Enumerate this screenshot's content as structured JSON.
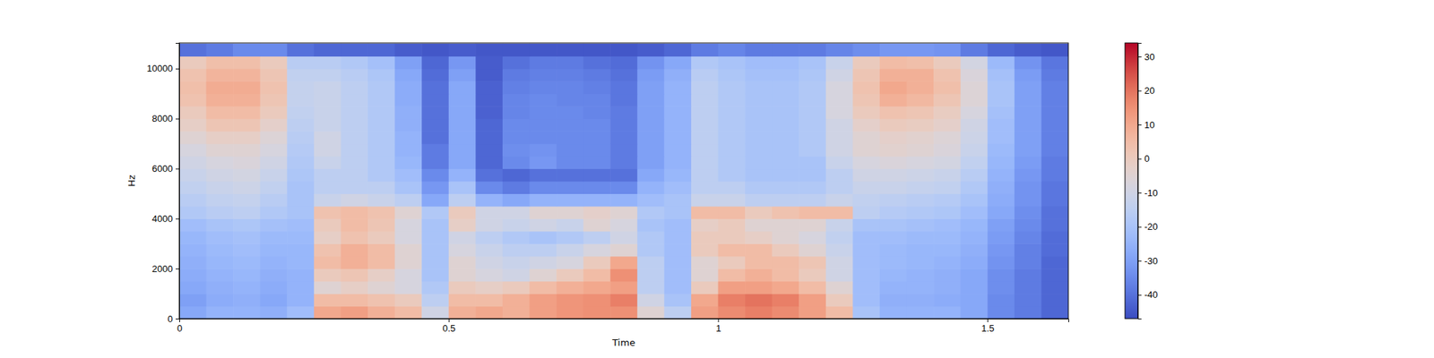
{
  "chart_data": {
    "type": "heatmap",
    "x_label": "Time",
    "y_label": "Hz",
    "xlim": [
      0,
      1.65
    ],
    "xticks": [
      0,
      0.5,
      1,
      1.5
    ],
    "ylim": [
      0,
      11025
    ],
    "yticks": [
      0,
      2000,
      4000,
      6000,
      8000,
      10000
    ],
    "colorbar_range": [
      -47,
      34
    ],
    "colorbar_ticks": [
      -40,
      -30,
      -20,
      -10,
      0,
      10,
      20,
      30
    ],
    "x": [
      0.025,
      0.075,
      0.125,
      0.175,
      0.225,
      0.275,
      0.325,
      0.375,
      0.425,
      0.475,
      0.525,
      0.575,
      0.625,
      0.675,
      0.725,
      0.775,
      0.825,
      0.875,
      0.925,
      0.975,
      1.025,
      1.075,
      1.125,
      1.175,
      1.225,
      1.275,
      1.325,
      1.375,
      1.425,
      1.475,
      1.525,
      1.575,
      1.625
    ],
    "y": [
      250,
      750,
      1250,
      1750,
      2250,
      2750,
      3250,
      3750,
      4250,
      4750,
      5250,
      5750,
      6250,
      6750,
      7250,
      7750,
      8250,
      8750,
      9250,
      9750,
      10250,
      10750
    ],
    "z": [
      [
        -28,
        -25,
        -25,
        -26,
        -22,
        10,
        12,
        8,
        5,
        -10,
        8,
        10,
        8,
        12,
        14,
        15,
        15,
        -5,
        -15,
        12,
        16,
        18,
        16,
        12,
        5,
        -20,
        -25,
        -25,
        -25,
        -28,
        -35,
        -38,
        -42
      ],
      [
        -30,
        -27,
        -26,
        -28,
        -25,
        5,
        5,
        3,
        0,
        -15,
        5,
        5,
        8,
        12,
        14,
        15,
        18,
        -10,
        -20,
        10,
        18,
        20,
        18,
        12,
        0,
        -22,
        -26,
        -26,
        -27,
        -28,
        -35,
        -38,
        -42
      ],
      [
        -28,
        -26,
        -25,
        -27,
        -25,
        -5,
        -2,
        -5,
        -8,
        -18,
        0,
        -2,
        0,
        5,
        8,
        10,
        12,
        -15,
        -22,
        0,
        12,
        12,
        10,
        5,
        -5,
        -22,
        -25,
        -25,
        -26,
        -28,
        -34,
        -38,
        -42
      ],
      [
        -27,
        -25,
        -24,
        -26,
        -25,
        0,
        2,
        -2,
        -8,
        -20,
        -5,
        -8,
        -10,
        -5,
        0,
        5,
        15,
        -15,
        -22,
        -5,
        5,
        8,
        5,
        0,
        -10,
        -22,
        -24,
        -25,
        -26,
        -28,
        -34,
        -38,
        -42
      ],
      [
        -26,
        -24,
        -23,
        -25,
        -24,
        5,
        8,
        5,
        -5,
        -20,
        -5,
        -10,
        -12,
        -10,
        -8,
        0,
        10,
        -15,
        -22,
        -5,
        0,
        5,
        5,
        2,
        -10,
        -22,
        -23,
        -24,
        -25,
        -27,
        -33,
        -37,
        -42
      ],
      [
        -25,
        -23,
        -22,
        -24,
        -24,
        3,
        8,
        5,
        -5,
        -20,
        -8,
        -12,
        -15,
        -15,
        -12,
        -8,
        -5,
        -18,
        -22,
        0,
        5,
        5,
        0,
        -5,
        -12,
        -22,
        -23,
        -24,
        -24,
        -26,
        -32,
        -37,
        -41
      ],
      [
        -24,
        -22,
        -21,
        -23,
        -23,
        -2,
        3,
        0,
        -8,
        -20,
        -10,
        -15,
        -18,
        -20,
        -18,
        -15,
        -10,
        -18,
        -22,
        0,
        0,
        -2,
        -5,
        -8,
        -14,
        -22,
        -22,
        -23,
        -23,
        -25,
        -31,
        -36,
        -41
      ],
      [
        -22,
        -20,
        -19,
        -21,
        -22,
        0,
        5,
        2,
        -8,
        -20,
        -2,
        -10,
        -12,
        -10,
        -12,
        -5,
        -8,
        -20,
        -22,
        -2,
        0,
        -5,
        -5,
        -5,
        -12,
        -20,
        -20,
        -21,
        -22,
        -24,
        -30,
        -35,
        -40
      ],
      [
        -18,
        -16,
        -15,
        -18,
        -20,
        3,
        5,
        3,
        -5,
        -18,
        0,
        -10,
        -10,
        -5,
        -5,
        -3,
        -5,
        -18,
        -20,
        5,
        5,
        0,
        3,
        5,
        5,
        -15,
        -17,
        -18,
        -19,
        -22,
        -28,
        -34,
        -40
      ],
      [
        -16,
        -14,
        -13,
        -16,
        -20,
        -12,
        -10,
        -12,
        -15,
        -28,
        -15,
        -25,
        -28,
        -25,
        -25,
        -25,
        -25,
        -22,
        -20,
        -12,
        -12,
        -15,
        -15,
        -15,
        -12,
        -14,
        -15,
        -16,
        -17,
        -20,
        -27,
        -33,
        -39
      ],
      [
        -14,
        -12,
        -11,
        -14,
        -20,
        -15,
        -15,
        -15,
        -20,
        -32,
        -20,
        -35,
        -38,
        -35,
        -35,
        -35,
        -35,
        -25,
        -22,
        -15,
        -15,
        -18,
        -18,
        -18,
        -15,
        -12,
        -12,
        -13,
        -14,
        -18,
        -26,
        -33,
        -39
      ],
      [
        -12,
        -10,
        -9,
        -12,
        -19,
        -15,
        -15,
        -18,
        -22,
        -35,
        -25,
        -40,
        -42,
        -40,
        -40,
        -40,
        -40,
        -28,
        -24,
        -15,
        -18,
        -20,
        -20,
        -20,
        -15,
        -10,
        -10,
        -11,
        -12,
        -16,
        -25,
        -32,
        -38
      ],
      [
        -10,
        -8,
        -7,
        -10,
        -18,
        -12,
        -15,
        -18,
        -24,
        -38,
        -28,
        -42,
        -35,
        -32,
        -35,
        -35,
        -38,
        -30,
        -25,
        -15,
        -18,
        -20,
        -20,
        -20,
        -12,
        -8,
        -7,
        -8,
        -9,
        -14,
        -24,
        -31,
        -38
      ],
      [
        -8,
        -5,
        -5,
        -8,
        -17,
        -10,
        -15,
        -18,
        -25,
        -38,
        -28,
        -42,
        -34,
        -33,
        -35,
        -35,
        -38,
        -30,
        -25,
        -15,
        -18,
        -20,
        -20,
        -18,
        -10,
        -5,
        -4,
        -5,
        -7,
        -12,
        -23,
        -30,
        -37
      ],
      [
        -5,
        -2,
        -2,
        -6,
        -16,
        -10,
        -15,
        -18,
        -25,
        -40,
        -28,
        -42,
        -35,
        -35,
        -35,
        -35,
        -38,
        -30,
        -25,
        -15,
        -18,
        -20,
        -20,
        -18,
        -10,
        -5,
        -3,
        -4,
        -6,
        -11,
        -22,
        -30,
        -37
      ],
      [
        -2,
        2,
        2,
        -3,
        -15,
        -12,
        -15,
        -18,
        -26,
        -40,
        -28,
        -42,
        -35,
        -35,
        -35,
        -35,
        -38,
        -30,
        -25,
        -15,
        -18,
        -20,
        -20,
        -18,
        -10,
        -3,
        0,
        -1,
        -3,
        -10,
        -22,
        -30,
        -37
      ],
      [
        0,
        5,
        5,
        0,
        -14,
        -12,
        -15,
        -18,
        -26,
        -40,
        -28,
        -43,
        -36,
        -35,
        -35,
        -36,
        -38,
        -30,
        -25,
        -15,
        -18,
        -20,
        -20,
        -18,
        -8,
        0,
        3,
        2,
        -1,
        -8,
        -21,
        -30,
        -37
      ],
      [
        3,
        8,
        8,
        2,
        -13,
        -12,
        -15,
        -18,
        -27,
        -40,
        -28,
        -43,
        -36,
        -35,
        -36,
        -36,
        -39,
        -30,
        -25,
        -15,
        -18,
        -20,
        -20,
        -18,
        -8,
        2,
        8,
        6,
        2,
        -6,
        -20,
        -30,
        -37
      ],
      [
        4,
        9,
        9,
        3,
        -13,
        -12,
        -15,
        -18,
        -27,
        -40,
        -28,
        -43,
        -37,
        -36,
        -36,
        -37,
        -39,
        -30,
        -25,
        -15,
        -18,
        -20,
        -20,
        -18,
        -8,
        3,
        10,
        8,
        4,
        -6,
        -20,
        -30,
        -37
      ],
      [
        3,
        7,
        7,
        2,
        -14,
        -14,
        -16,
        -19,
        -28,
        -41,
        -30,
        -44,
        -38,
        -37,
        -37,
        -38,
        -40,
        -31,
        -26,
        -16,
        -19,
        -21,
        -21,
        -19,
        -10,
        2,
        8,
        8,
        3,
        -7,
        -21,
        -31,
        -38
      ],
      [
        0,
        4,
        4,
        0,
        -16,
        -16,
        -18,
        -21,
        -30,
        -42,
        -32,
        -44,
        -40,
        -38,
        -38,
        -40,
        -41,
        -33,
        -28,
        -18,
        -20,
        -22,
        -22,
        -20,
        -12,
        0,
        5,
        4,
        0,
        -9,
        -23,
        -33,
        -39
      ],
      [
        -40,
        -38,
        -35,
        -35,
        -40,
        -42,
        -42,
        -42,
        -44,
        -45,
        -44,
        -45,
        -45,
        -45,
        -45,
        -45,
        -45,
        -44,
        -42,
        -38,
        -36,
        -38,
        -38,
        -38,
        -36,
        -34,
        -32,
        -32,
        -33,
        -38,
        -42,
        -44,
        -45
      ]
    ]
  }
}
